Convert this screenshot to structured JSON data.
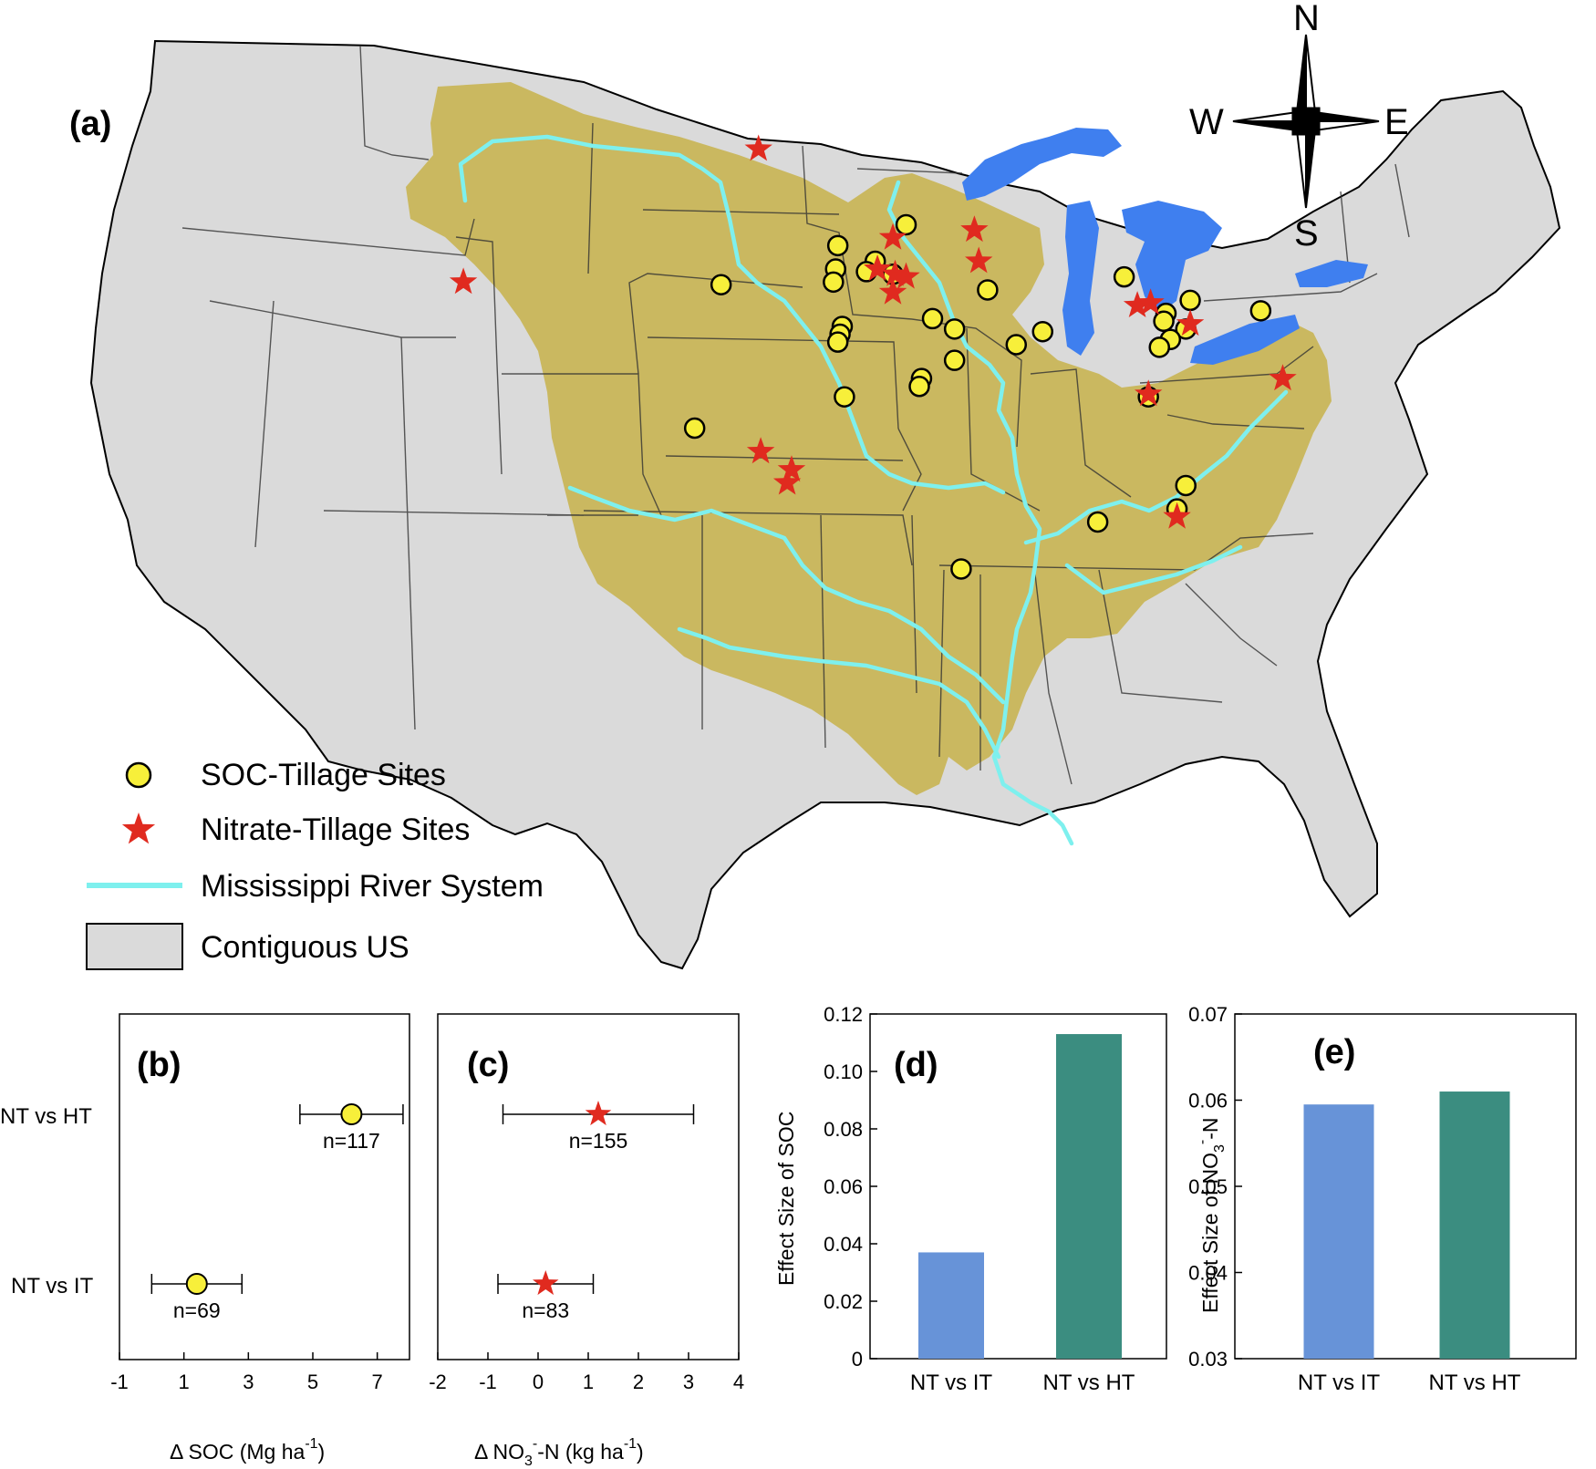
{
  "map": {
    "panel_label": "(a)",
    "compass": {
      "n": "N",
      "s": "S",
      "e": "E",
      "w": "W"
    },
    "colors": {
      "us_fill": "#dadada",
      "basin_fill": "#c9b65a",
      "lakes": "#3f7fef",
      "river": "#7ef0ee",
      "soc_marker": "#f7ef3a",
      "nitrate_marker": "#e02a1f"
    },
    "legend": [
      {
        "key": "soc",
        "label": "SOC-Tillage Sites"
      },
      {
        "key": "nitrate",
        "label": "Nitrate-Tillage Sites"
      },
      {
        "key": "river",
        "label": "Mississippi River System"
      },
      {
        "key": "us",
        "label": "Contiguous US"
      }
    ],
    "soc_sites_lonlat": [
      [
        -96.4,
        44.3
      ],
      [
        -96.5,
        43.4
      ],
      [
        -96.6,
        42.9
      ],
      [
        -101.7,
        42.8
      ],
      [
        -93.3,
        45.1
      ],
      [
        -94.7,
        43.7
      ],
      [
        -95.1,
        43.3
      ],
      [
        -93.9,
        43.2
      ],
      [
        -96.2,
        41.2
      ],
      [
        -96.3,
        40.9
      ],
      [
        -96.4,
        40.6
      ],
      [
        -96.1,
        38.5
      ],
      [
        -92.1,
        41.5
      ],
      [
        -91.1,
        41.1
      ],
      [
        -91.1,
        39.9
      ],
      [
        -92.6,
        39.2
      ],
      [
        -92.7,
        38.9
      ],
      [
        -89.6,
        42.6
      ],
      [
        -88.3,
        40.5
      ],
      [
        -87.1,
        41.0
      ],
      [
        -83.4,
        43.1
      ],
      [
        -81.5,
        41.7
      ],
      [
        -81.6,
        41.4
      ],
      [
        -80.4,
        42.2
      ],
      [
        -80.6,
        41.1
      ],
      [
        -81.3,
        40.7
      ],
      [
        -81.8,
        40.4
      ],
      [
        -77.2,
        41.8
      ],
      [
        -82.3,
        38.5
      ],
      [
        -102.9,
        37.3
      ],
      [
        -80.6,
        35.1
      ],
      [
        -84.6,
        33.7
      ],
      [
        -90.8,
        31.9
      ],
      [
        -81.0,
        34.2
      ]
    ],
    "nitrate_sites_lonlat": [
      [
        -100.0,
        48.0
      ],
      [
        -113.4,
        42.9
      ],
      [
        -93.9,
        44.6
      ],
      [
        -94.6,
        43.4
      ],
      [
        -93.8,
        43.2
      ],
      [
        -93.3,
        43.1
      ],
      [
        -93.9,
        42.5
      ],
      [
        -90.2,
        44.9
      ],
      [
        -90.0,
        43.7
      ],
      [
        -82.8,
        42.0
      ],
      [
        -82.2,
        42.1
      ],
      [
        -80.4,
        41.3
      ],
      [
        -76.2,
        39.2
      ],
      [
        -82.3,
        38.6
      ],
      [
        -99.9,
        36.4
      ],
      [
        -98.5,
        35.7
      ],
      [
        -98.7,
        35.2
      ],
      [
        -81.0,
        33.9
      ]
    ]
  },
  "chart_data": [
    {
      "type": "scatter",
      "panel_label": "(b)",
      "xlabel_main": "Δ SOC (Mg ha",
      "xlabel_sup": "-1",
      "xlabel_end": ")",
      "xlim": [
        -1,
        8
      ],
      "xticks": [
        "-1",
        "1",
        "3",
        "5",
        "7"
      ],
      "xtick_values": [
        -1,
        1,
        3,
        5,
        7
      ],
      "categories": [
        "NT vs HT",
        "NT vs IT"
      ],
      "points": [
        {
          "category": "NT vs HT",
          "mean": 6.2,
          "low": 4.6,
          "high": 7.8,
          "n_label": "n=117"
        },
        {
          "category": "NT vs IT",
          "mean": 1.4,
          "low": 0.0,
          "high": 2.8,
          "n_label": "n=69"
        }
      ],
      "marker": "circle",
      "color": "#f7ef3a"
    },
    {
      "type": "scatter",
      "panel_label": "(c)",
      "xlabel_main": "Δ NO",
      "xlabel_sub": "3",
      "xlabel_sup1": "-",
      "xlabel_mid": "-N (kg ha",
      "xlabel_sup2": "-1",
      "xlabel_end": ")",
      "xlim": [
        -2,
        4
      ],
      "xticks": [
        "-2",
        "-1",
        "0",
        "1",
        "2",
        "3",
        "4"
      ],
      "xtick_values": [
        -2,
        -1,
        0,
        1,
        2,
        3,
        4
      ],
      "categories": [
        "NT vs HT",
        "NT vs IT"
      ],
      "points": [
        {
          "category": "NT vs HT",
          "mean": 1.2,
          "low": -0.7,
          "high": 3.1,
          "n_label": "n=155"
        },
        {
          "category": "NT vs IT",
          "mean": 0.15,
          "low": -0.8,
          "high": 1.1,
          "n_label": "n=83"
        }
      ],
      "marker": "star",
      "color": "#e02a1f"
    },
    {
      "type": "bar",
      "panel_label": "(d)",
      "ylabel": "Effect Size of SOC",
      "ylim": [
        0,
        0.12
      ],
      "yticks": [
        "0",
        "0.02",
        "0.04",
        "0.06",
        "0.08",
        "0.10",
        "0.12"
      ],
      "ytick_values": [
        0,
        0.02,
        0.04,
        0.06,
        0.08,
        0.1,
        0.12
      ],
      "categories": [
        "NT vs IT",
        "NT vs HT"
      ],
      "values": [
        0.037,
        0.113
      ],
      "colors": [
        "#6793d8",
        "#3b8d80"
      ]
    },
    {
      "type": "bar",
      "panel_label": "(e)",
      "ylabel_main": "Effect Size of NO",
      "ylabel_sub": "3",
      "ylabel_sup": "-",
      "ylabel_end": "-N",
      "ylim": [
        0.03,
        0.07
      ],
      "yticks": [
        "0.03",
        "0.04",
        "0.05",
        "0.06",
        "0.07"
      ],
      "ytick_values": [
        0.03,
        0.04,
        0.05,
        0.06,
        0.07
      ],
      "categories": [
        "NT vs IT",
        "NT vs HT"
      ],
      "values": [
        0.0595,
        0.061
      ],
      "colors": [
        "#6793d8",
        "#3b8d80"
      ]
    }
  ]
}
